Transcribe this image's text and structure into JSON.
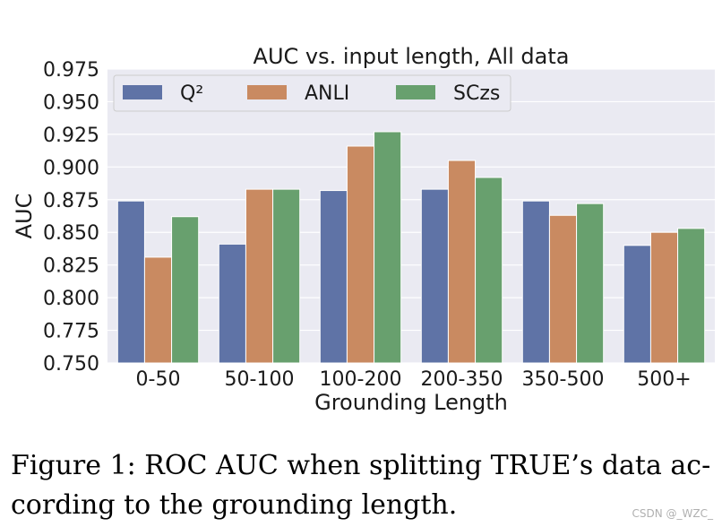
{
  "chart_data": {
    "type": "bar",
    "title": "AUC vs. input length, All data",
    "xlabel": "Grounding Length",
    "ylabel": "AUC",
    "categories": [
      "0-50",
      "50-100",
      "100-200",
      "200-350",
      "350-500",
      "500+"
    ],
    "series": [
      {
        "name": "Q²",
        "color": "#5f73a6",
        "values": [
          0.874,
          0.841,
          0.882,
          0.883,
          0.874,
          0.84
        ]
      },
      {
        "name": "ANLI",
        "color": "#c98a61",
        "values": [
          0.831,
          0.883,
          0.916,
          0.905,
          0.863,
          0.85
        ]
      },
      {
        "name": "SCzs",
        "color": "#68a06e",
        "values": [
          0.862,
          0.883,
          0.927,
          0.892,
          0.872,
          0.853
        ]
      }
    ],
    "ylim": [
      0.75,
      0.975
    ],
    "yticks": [
      "0.750",
      "0.775",
      "0.800",
      "0.825",
      "0.850",
      "0.875",
      "0.900",
      "0.925",
      "0.950",
      "0.975"
    ],
    "grid": true,
    "legend_position": "top-left",
    "background_color": "#eaeaf2"
  },
  "caption": {
    "line1": "Figure 1:  ROC AUC when splitting TRUE’s data ac-",
    "line2": "cording to the grounding length."
  },
  "watermark": "CSDN @_WZC_"
}
